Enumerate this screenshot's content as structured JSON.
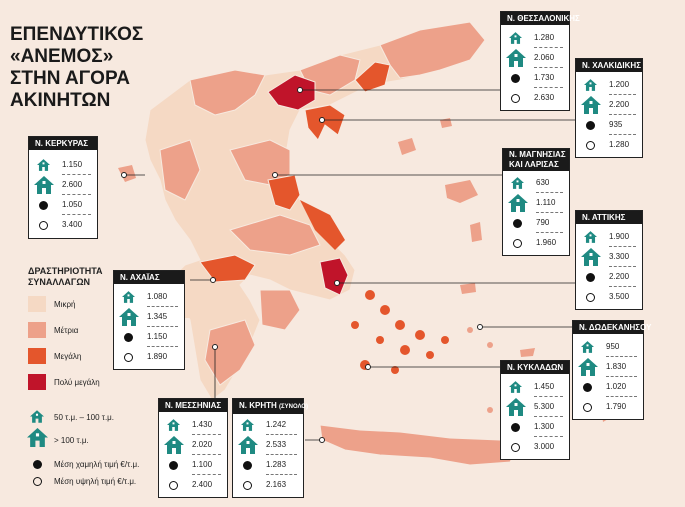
{
  "title": {
    "line1": "ΕΠΕΝΔΥΤΙΚΟΣ",
    "line2": "«ΑΝΕΜΟΣ»",
    "line3": "ΣΤΗΝ ΑΓΟΡΑ",
    "line4": "ΑΚΙΝΗΤΩΝ"
  },
  "colors": {
    "background": "#f7e9df",
    "small": "#f5d9c4",
    "medium": "#eda18a",
    "large": "#e4562c",
    "very_large": "#c0142a",
    "icon": "#1f8a82"
  },
  "legend": {
    "title_line1": "ΔΡΑΣΤΗΡΙΟΤΗΤΑ",
    "title_line2": "ΣΥΝΑΛΛΑΓΩΝ",
    "levels": [
      "Μικρή",
      "Μέτρια",
      "Μεγάλη",
      "Πολύ μεγάλη"
    ],
    "small_house": "50 τ.μ. – 100 τ.μ.",
    "big_house": "> 100 τ.μ.",
    "low_price": "Μέση χαμηλή τιμή €/τ.μ.",
    "high_price": "Μέση υψηλή τιμή €/τ.μ."
  },
  "regions": {
    "thessaloniki": {
      "name": "Ν. ΘΕΣΣΑΛΟΝΙΚΗΣ",
      "small": "1.280",
      "big": "2.060",
      "low": "1.730",
      "high": "2.630"
    },
    "chalkidiki": {
      "name": "Ν. ΧΑΛΚΙΔΙΚΗΣ",
      "small": "1.200",
      "big": "2.200",
      "low": "935",
      "high": "1.280"
    },
    "kerkyra": {
      "name": "Ν. ΚΕΡΚΥΡΑΣ",
      "small": "1.150",
      "big": "2.600",
      "low": "1.050",
      "high": "3.400"
    },
    "magnisia": {
      "name1": "Ν. ΜΑΓΝΗΣΙΑΣ",
      "name2": "ΚΑΙ ΛΑΡΙΣΑΣ",
      "small": "630",
      "big": "1.110",
      "low": "790",
      "high": "1.960"
    },
    "attiki": {
      "name": "Ν. ΑΤΤΙΚΗΣ",
      "small": "1.900",
      "big": "3.300",
      "low": "2.200",
      "high": "3.500"
    },
    "achaia": {
      "name": "Ν. ΑΧΑΪΑΣ",
      "small": "1.080",
      "big": "1.345",
      "low": "1.150",
      "high": "1.890"
    },
    "dodekanisa": {
      "name": "Ν. ΔΩΔΕΚΑΝΗΣΟΥ",
      "small": "950",
      "big": "1.830",
      "low": "1.020",
      "high": "1.790"
    },
    "kyklades": {
      "name": "Ν. ΚΥΚΛΑΔΩΝ",
      "small": "1.450",
      "big": "5.300",
      "low": "1.300",
      "high": "3.000"
    },
    "messinia": {
      "name": "Ν. ΜΕΣΣΗΝΙΑΣ",
      "small": "1.430",
      "big": "2.020",
      "low": "1.100",
      "high": "2.400"
    },
    "kriti": {
      "name": "Ν. ΚΡΗΤΗ",
      "name_suffix": "(ΣΥΝΟΛΟ)",
      "small": "1.242",
      "big": "2.533",
      "low": "1.283",
      "high": "2.163"
    }
  }
}
